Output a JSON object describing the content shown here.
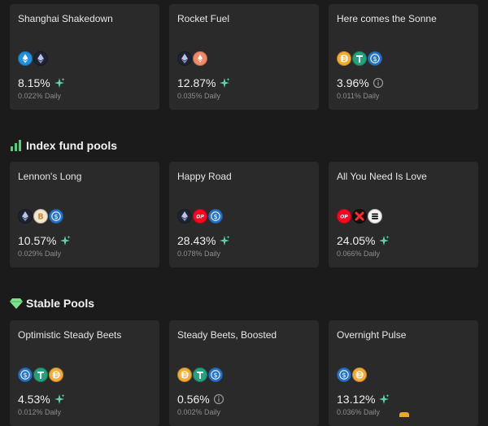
{
  "colors": {
    "background": "#1b1b1b",
    "card": "#2a2a2a",
    "sparkle": "#5fd3a8",
    "index_icon": "#4cd07a",
    "stable_icon": "#7ee08a"
  },
  "top_row": [
    {
      "name": "Shanghai Shakedown",
      "apy": "8.15%",
      "daily": "0.022% Daily",
      "rate_icon": "sparkle-icon",
      "tokens": [
        "steth",
        "eth"
      ]
    },
    {
      "name": "Rocket Fuel",
      "apy": "12.87%",
      "daily": "0.035% Daily",
      "rate_icon": "sparkle-icon",
      "tokens": [
        "eth",
        "reth"
      ]
    },
    {
      "name": "Here comes the Sonne",
      "apy": "3.96%",
      "daily": "0.011% Daily",
      "rate_icon": "info-icon",
      "tokens": [
        "dai",
        "usdt",
        "usdc"
      ]
    }
  ],
  "index_section": {
    "title": "Index fund pools",
    "icon": "bar-chart-icon"
  },
  "index_row": [
    {
      "name": "Lennon's Long",
      "apy": "10.57%",
      "daily": "0.029% Daily",
      "rate_icon": "sparkle-icon",
      "tokens": [
        "eth",
        "btc",
        "usdc"
      ]
    },
    {
      "name": "Happy Road",
      "apy": "28.43%",
      "daily": "0.078% Daily",
      "rate_icon": "sparkle-icon",
      "tokens": [
        "eth",
        "op",
        "usdc"
      ]
    },
    {
      "name": "All You Need Is Love",
      "apy": "24.05%",
      "daily": "0.066% Daily",
      "rate_icon": "sparkle-icon",
      "tokens": [
        "op",
        "velo",
        "snx"
      ]
    }
  ],
  "stable_section": {
    "title": "Stable Pools",
    "icon": "gem-icon"
  },
  "stable_row": [
    {
      "name": "Optimistic Steady Beets",
      "apy": "4.53%",
      "daily": "0.012% Daily",
      "rate_icon": "sparkle-icon",
      "tokens": [
        "usdc",
        "usdt",
        "dai"
      ]
    },
    {
      "name": "Steady Beets, Boosted",
      "apy": "0.56%",
      "daily": "0.002% Daily",
      "rate_icon": "info-icon",
      "tokens": [
        "dai",
        "usdt",
        "usdc"
      ]
    },
    {
      "name": "Overnight Pulse",
      "apy": "13.12%",
      "daily": "0.036% Daily",
      "rate_icon": "sparkle-icon",
      "tokens": [
        "usdc",
        "dai"
      ]
    }
  ]
}
